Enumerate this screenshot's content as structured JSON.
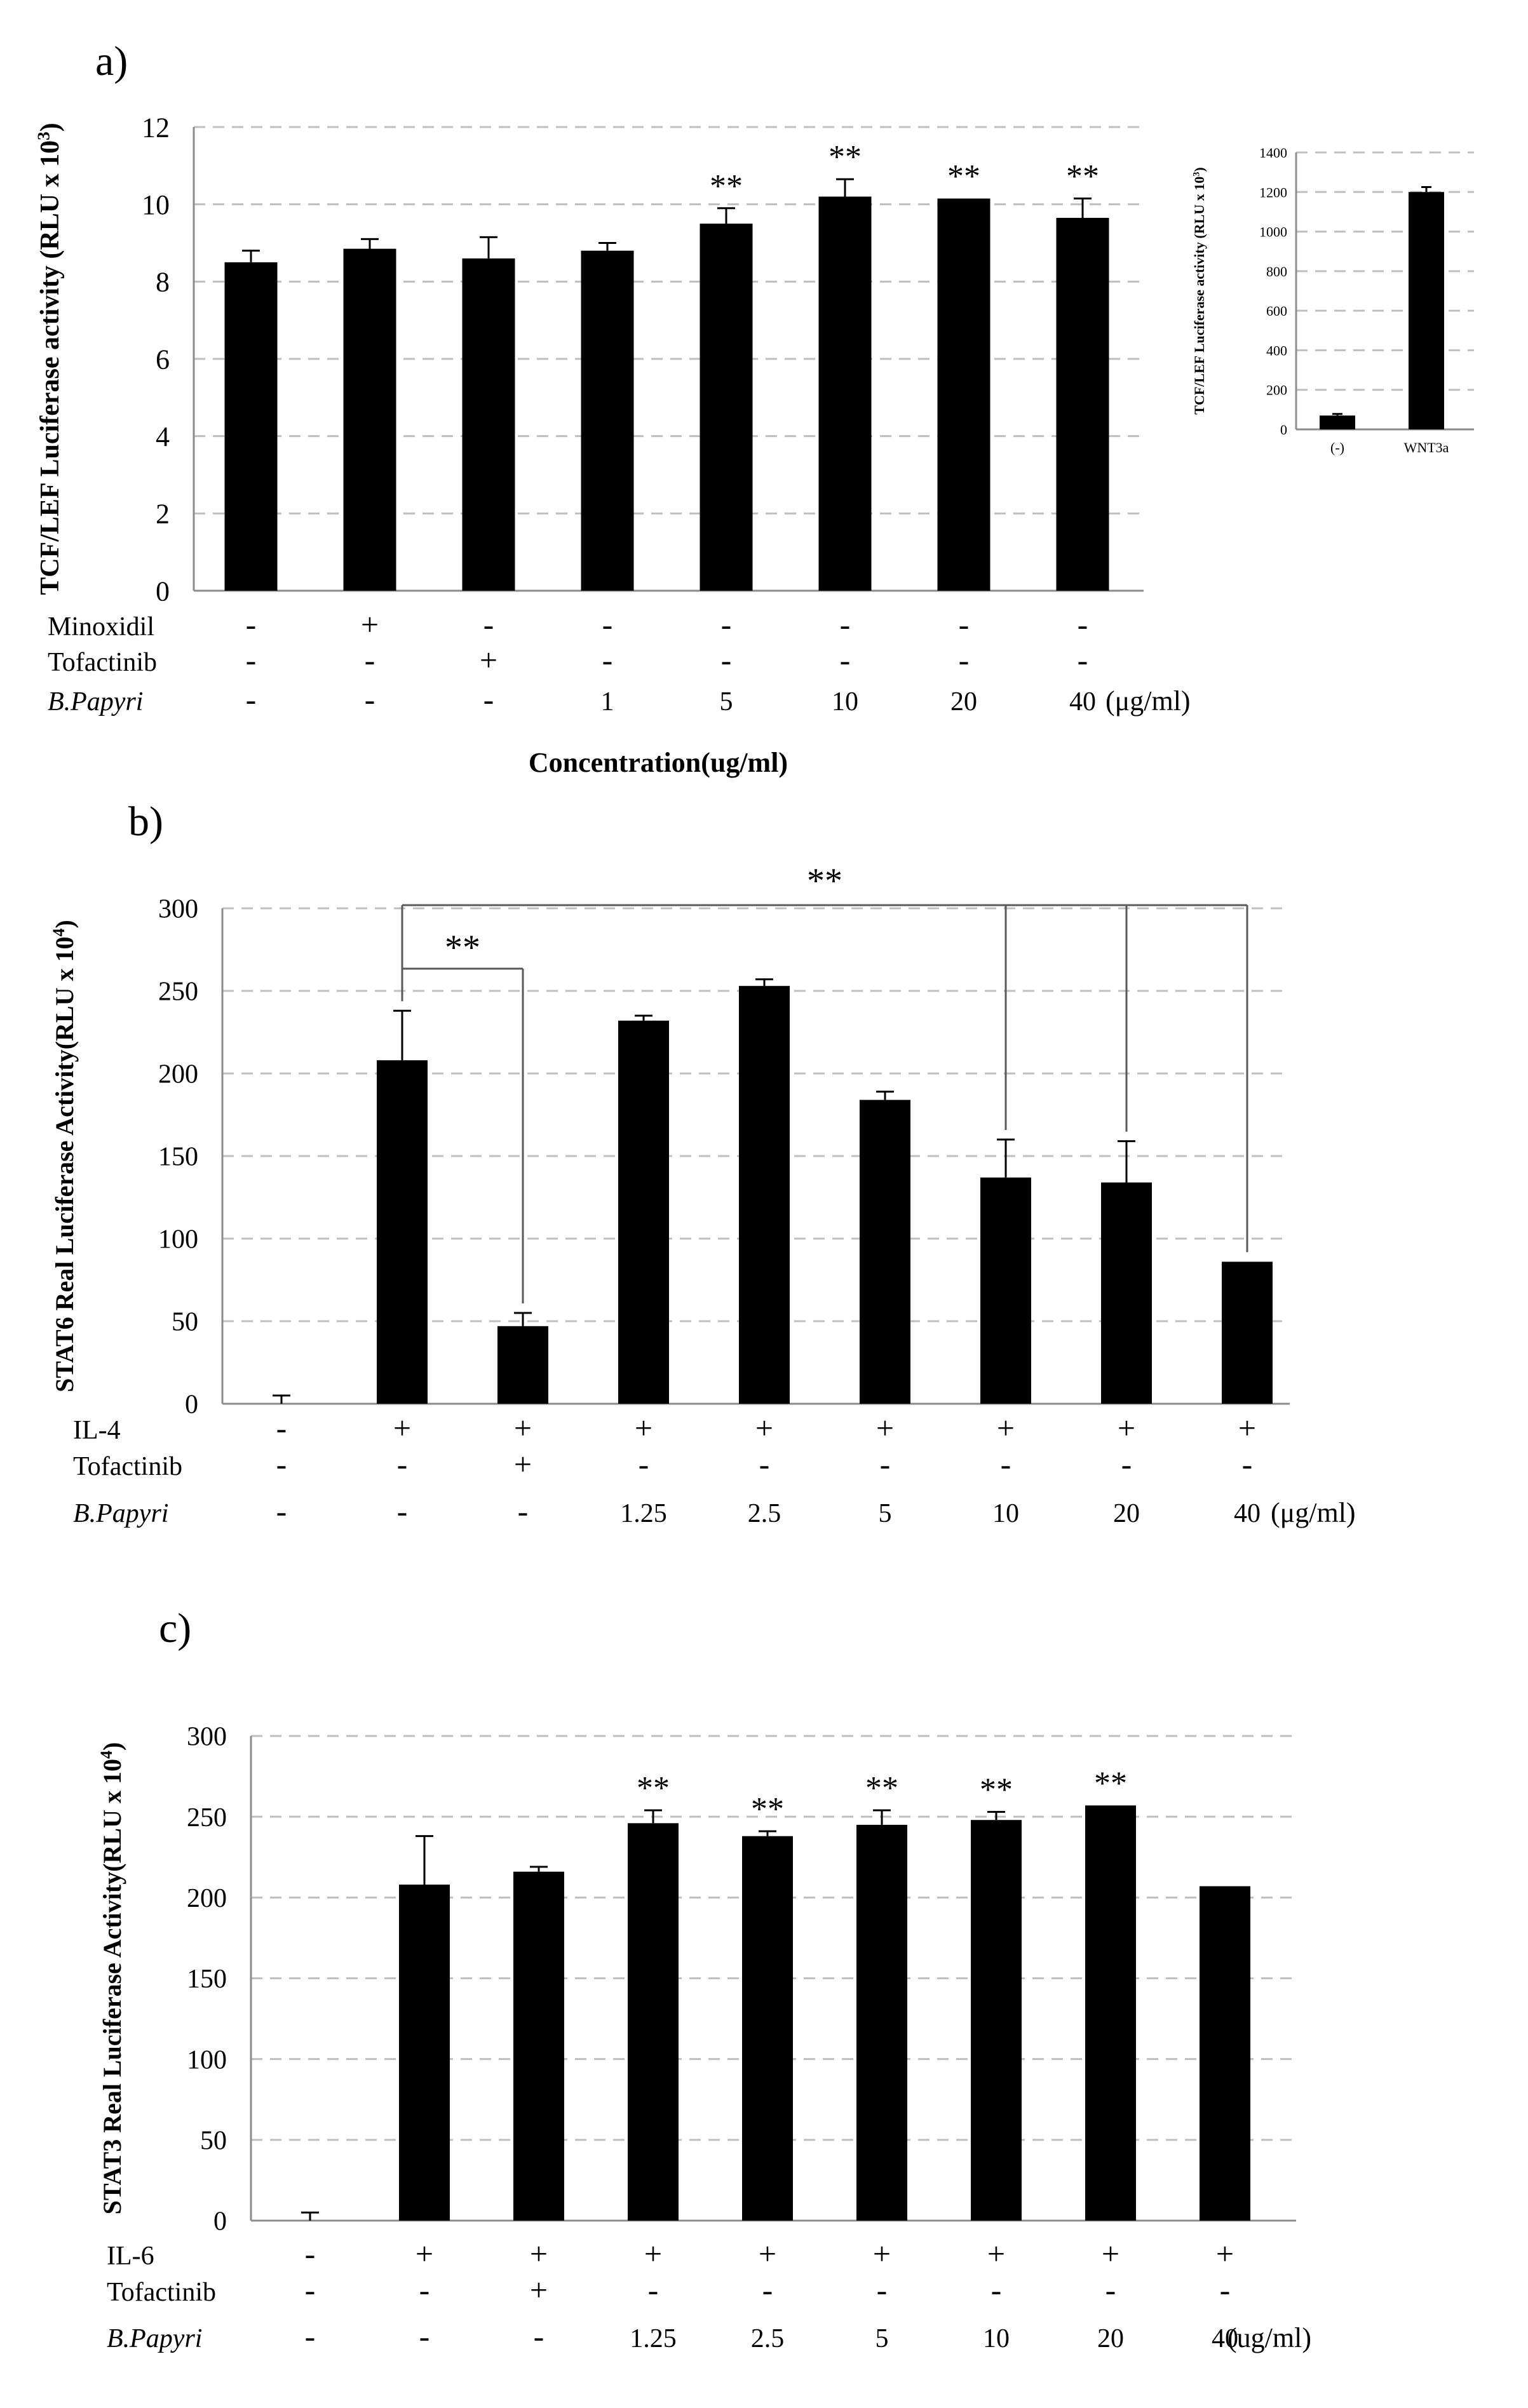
{
  "chart_data": [
    {
      "panel": "a)",
      "type": "bar",
      "ylabel_main": "TCF/LEF Luciferase activity (RLU x 10",
      "ylabel_sup": "3",
      "ylabel_close": ")",
      "ylim": [
        0,
        12
      ],
      "yticks": [
        "0",
        "2",
        "4",
        "6",
        "8",
        "10",
        "12"
      ],
      "values": [
        8.5,
        8.85,
        8.6,
        8.8,
        9.5,
        10.2,
        10.15,
        9.65
      ],
      "errors": [
        0.3,
        0.25,
        0.55,
        0.2,
        0.4,
        0.45,
        0.0,
        0.5
      ],
      "significance": [
        "",
        "",
        "",
        "",
        "**",
        "**",
        "**",
        "**"
      ],
      "row_labels": [
        "Minoxidil",
        "Tofactinib",
        "B.Papyri"
      ],
      "rows": [
        [
          "-",
          "+",
          "-",
          "-",
          "-",
          "-",
          "-",
          "-"
        ],
        [
          "-",
          "-",
          "+",
          "-",
          "-",
          "-",
          "-",
          "-"
        ],
        [
          "-",
          "-",
          "-",
          "1",
          "5",
          "10",
          "20",
          "40"
        ]
      ],
      "unit": "(μg/ml)",
      "xlabel": "Concentration(ug/ml)"
    },
    {
      "panel": "inset",
      "type": "bar",
      "ylabel_main": "TCF/LEF Luciferase activity (RLU x 10",
      "ylabel_sup": "3",
      "ylabel_close": ")",
      "ylim": [
        0,
        1400
      ],
      "yticks": [
        "0",
        "200",
        "400",
        "600",
        "800",
        "1000",
        "1200",
        "1400"
      ],
      "categories": [
        "(-)",
        "WNT3a"
      ],
      "values": [
        70,
        1200
      ],
      "errors": [
        8,
        25
      ]
    },
    {
      "panel": "b)",
      "type": "bar",
      "ylabel_main": "STAT6 Real Luciferase Activity(RLU  x 10",
      "ylabel_sup": "4",
      "ylabel_close": ")",
      "ylim": [
        0,
        300
      ],
      "yticks": [
        "0",
        "50",
        "100",
        "150",
        "200",
        "250",
        "300"
      ],
      "values": [
        0,
        208,
        47,
        232,
        253,
        184,
        137,
        134,
        86
      ],
      "errors": [
        5,
        30,
        8,
        3,
        4,
        5,
        23,
        25,
        0
      ],
      "significance_brackets": [
        {
          "label": "**",
          "from": 1,
          "to": [
            2
          ]
        },
        {
          "label": "**",
          "from": 1,
          "to": [
            6,
            7,
            8
          ]
        }
      ],
      "row_labels": [
        "IL-4",
        "Tofactinib",
        "B.Papyri"
      ],
      "rows": [
        [
          "-",
          "+",
          "+",
          "+",
          "+",
          "+",
          "+",
          "+",
          "+"
        ],
        [
          "-",
          "-",
          "+",
          "-",
          "-",
          "-",
          "-",
          "-",
          "-"
        ],
        [
          "-",
          "-",
          "-",
          "1.25",
          "2.5",
          "5",
          "10",
          "20",
          "40"
        ]
      ],
      "unit": "(μg/ml)"
    },
    {
      "panel": "c)",
      "type": "bar",
      "ylabel_main": "STAT3 Real Luciferase Activity(RLU  x 10",
      "ylabel_sup": "4",
      "ylabel_close": ")",
      "ylim": [
        0,
        300
      ],
      "yticks": [
        "0",
        "50",
        "100",
        "150",
        "200",
        "250",
        "300"
      ],
      "values": [
        0,
        208,
        216,
        246,
        238,
        245,
        248,
        257,
        207
      ],
      "errors": [
        5,
        30,
        3,
        8,
        3,
        9,
        5,
        0,
        0
      ],
      "significance": [
        "",
        "",
        "",
        "**",
        "**",
        "**",
        "**",
        "**",
        ""
      ],
      "row_labels": [
        "IL-6",
        "Tofactinib",
        "B.Papyri"
      ],
      "rows": [
        [
          "-",
          "+",
          "+",
          "+",
          "+",
          "+",
          "+",
          "+",
          "+"
        ],
        [
          "-",
          "-",
          "+",
          "-",
          "-",
          "-",
          "-",
          "-",
          "-"
        ],
        [
          "-",
          "-",
          "-",
          "1.25",
          "2.5",
          "5",
          "10",
          "20",
          "40"
        ]
      ],
      "unit": "(ug/ml)"
    }
  ]
}
